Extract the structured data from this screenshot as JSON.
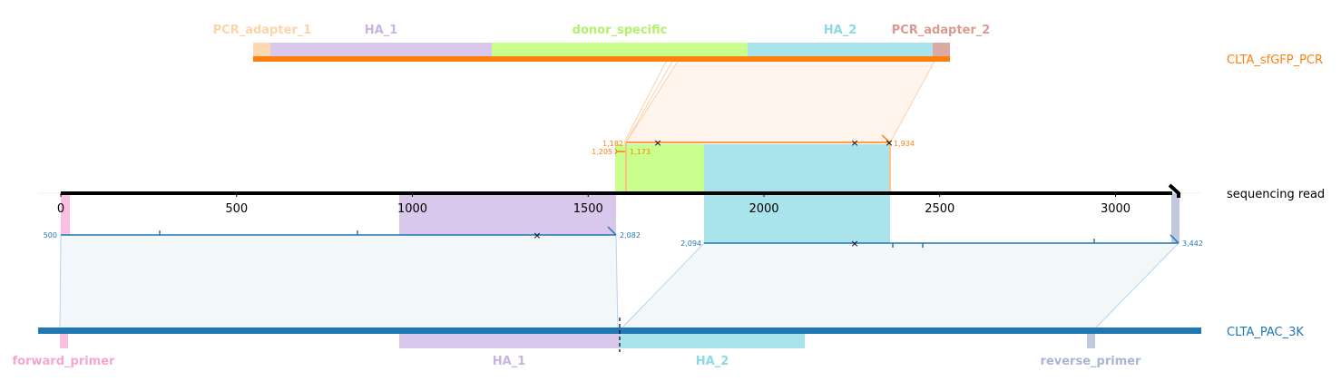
{
  "colors": {
    "pcr_orange": "#ff7f0e",
    "read_black": "#000000",
    "ref_blue": "#1f77b4",
    "pcr_adapter_1": "#fdd9b2",
    "ha_1": "#d9c8eb",
    "donor_specific": "#c8ff8d",
    "ha_2": "#a9e3ec",
    "pcr_adapter_2": "#dbaaa4",
    "forward_primer": "#fbbfe1",
    "reverse_primer": "#bfc8dd",
    "pcr_band": "#fff5ec",
    "ref_band": "#f2f7fa"
  },
  "references": {
    "pcr": {
      "name": "CLTA_sfGFP_PCR"
    },
    "read": {
      "name": "sequencing read"
    },
    "genome": {
      "name": "CLTA_PAC_3K"
    }
  },
  "pcr_features": [
    {
      "name": "PCR_adapter_1",
      "color": "#fdd9b2",
      "text_color": "#fdd4a8"
    },
    {
      "name": "HA_1",
      "color": "#d9c8eb",
      "text_color": "#c9b3e2"
    },
    {
      "name": "donor_specific",
      "color": "#c8ff8d",
      "text_color": "#b2f26a"
    },
    {
      "name": "HA_2",
      "color": "#a9e3ec",
      "text_color": "#8cd8e5"
    },
    {
      "name": "PCR_adapter_2",
      "color": "#dbaaa4",
      "text_color": "#d99a91"
    }
  ],
  "genome_features": [
    {
      "name": "forward_primer",
      "color": "#fbbfe1",
      "text_color": "#f7a6d3"
    },
    {
      "name": "HA_1",
      "color": "#d9c8eb",
      "text_color": "#c9b3e2"
    },
    {
      "name": "HA_2",
      "color": "#a9e3ec",
      "text_color": "#8cd8e5"
    },
    {
      "name": "reverse_primer",
      "color": "#bfc8dd",
      "text_color": "#a9b6d1"
    }
  ],
  "read_axis": {
    "ticks": [
      0,
      500,
      1000,
      1500,
      2000,
      2500,
      3000
    ],
    "tick_labels": [
      "0",
      "500",
      "1000",
      "1500",
      "2000",
      "2500",
      "3000"
    ],
    "length": 3185
  },
  "alignments": {
    "pcr_alignment": {
      "labels": [
        "1,182",
        "1,205",
        "1,173",
        "1,934"
      ]
    },
    "genome_left": {
      "labels": [
        "500",
        "2,082"
      ]
    },
    "genome_right": {
      "labels": [
        "2,094",
        "3,442"
      ]
    }
  }
}
